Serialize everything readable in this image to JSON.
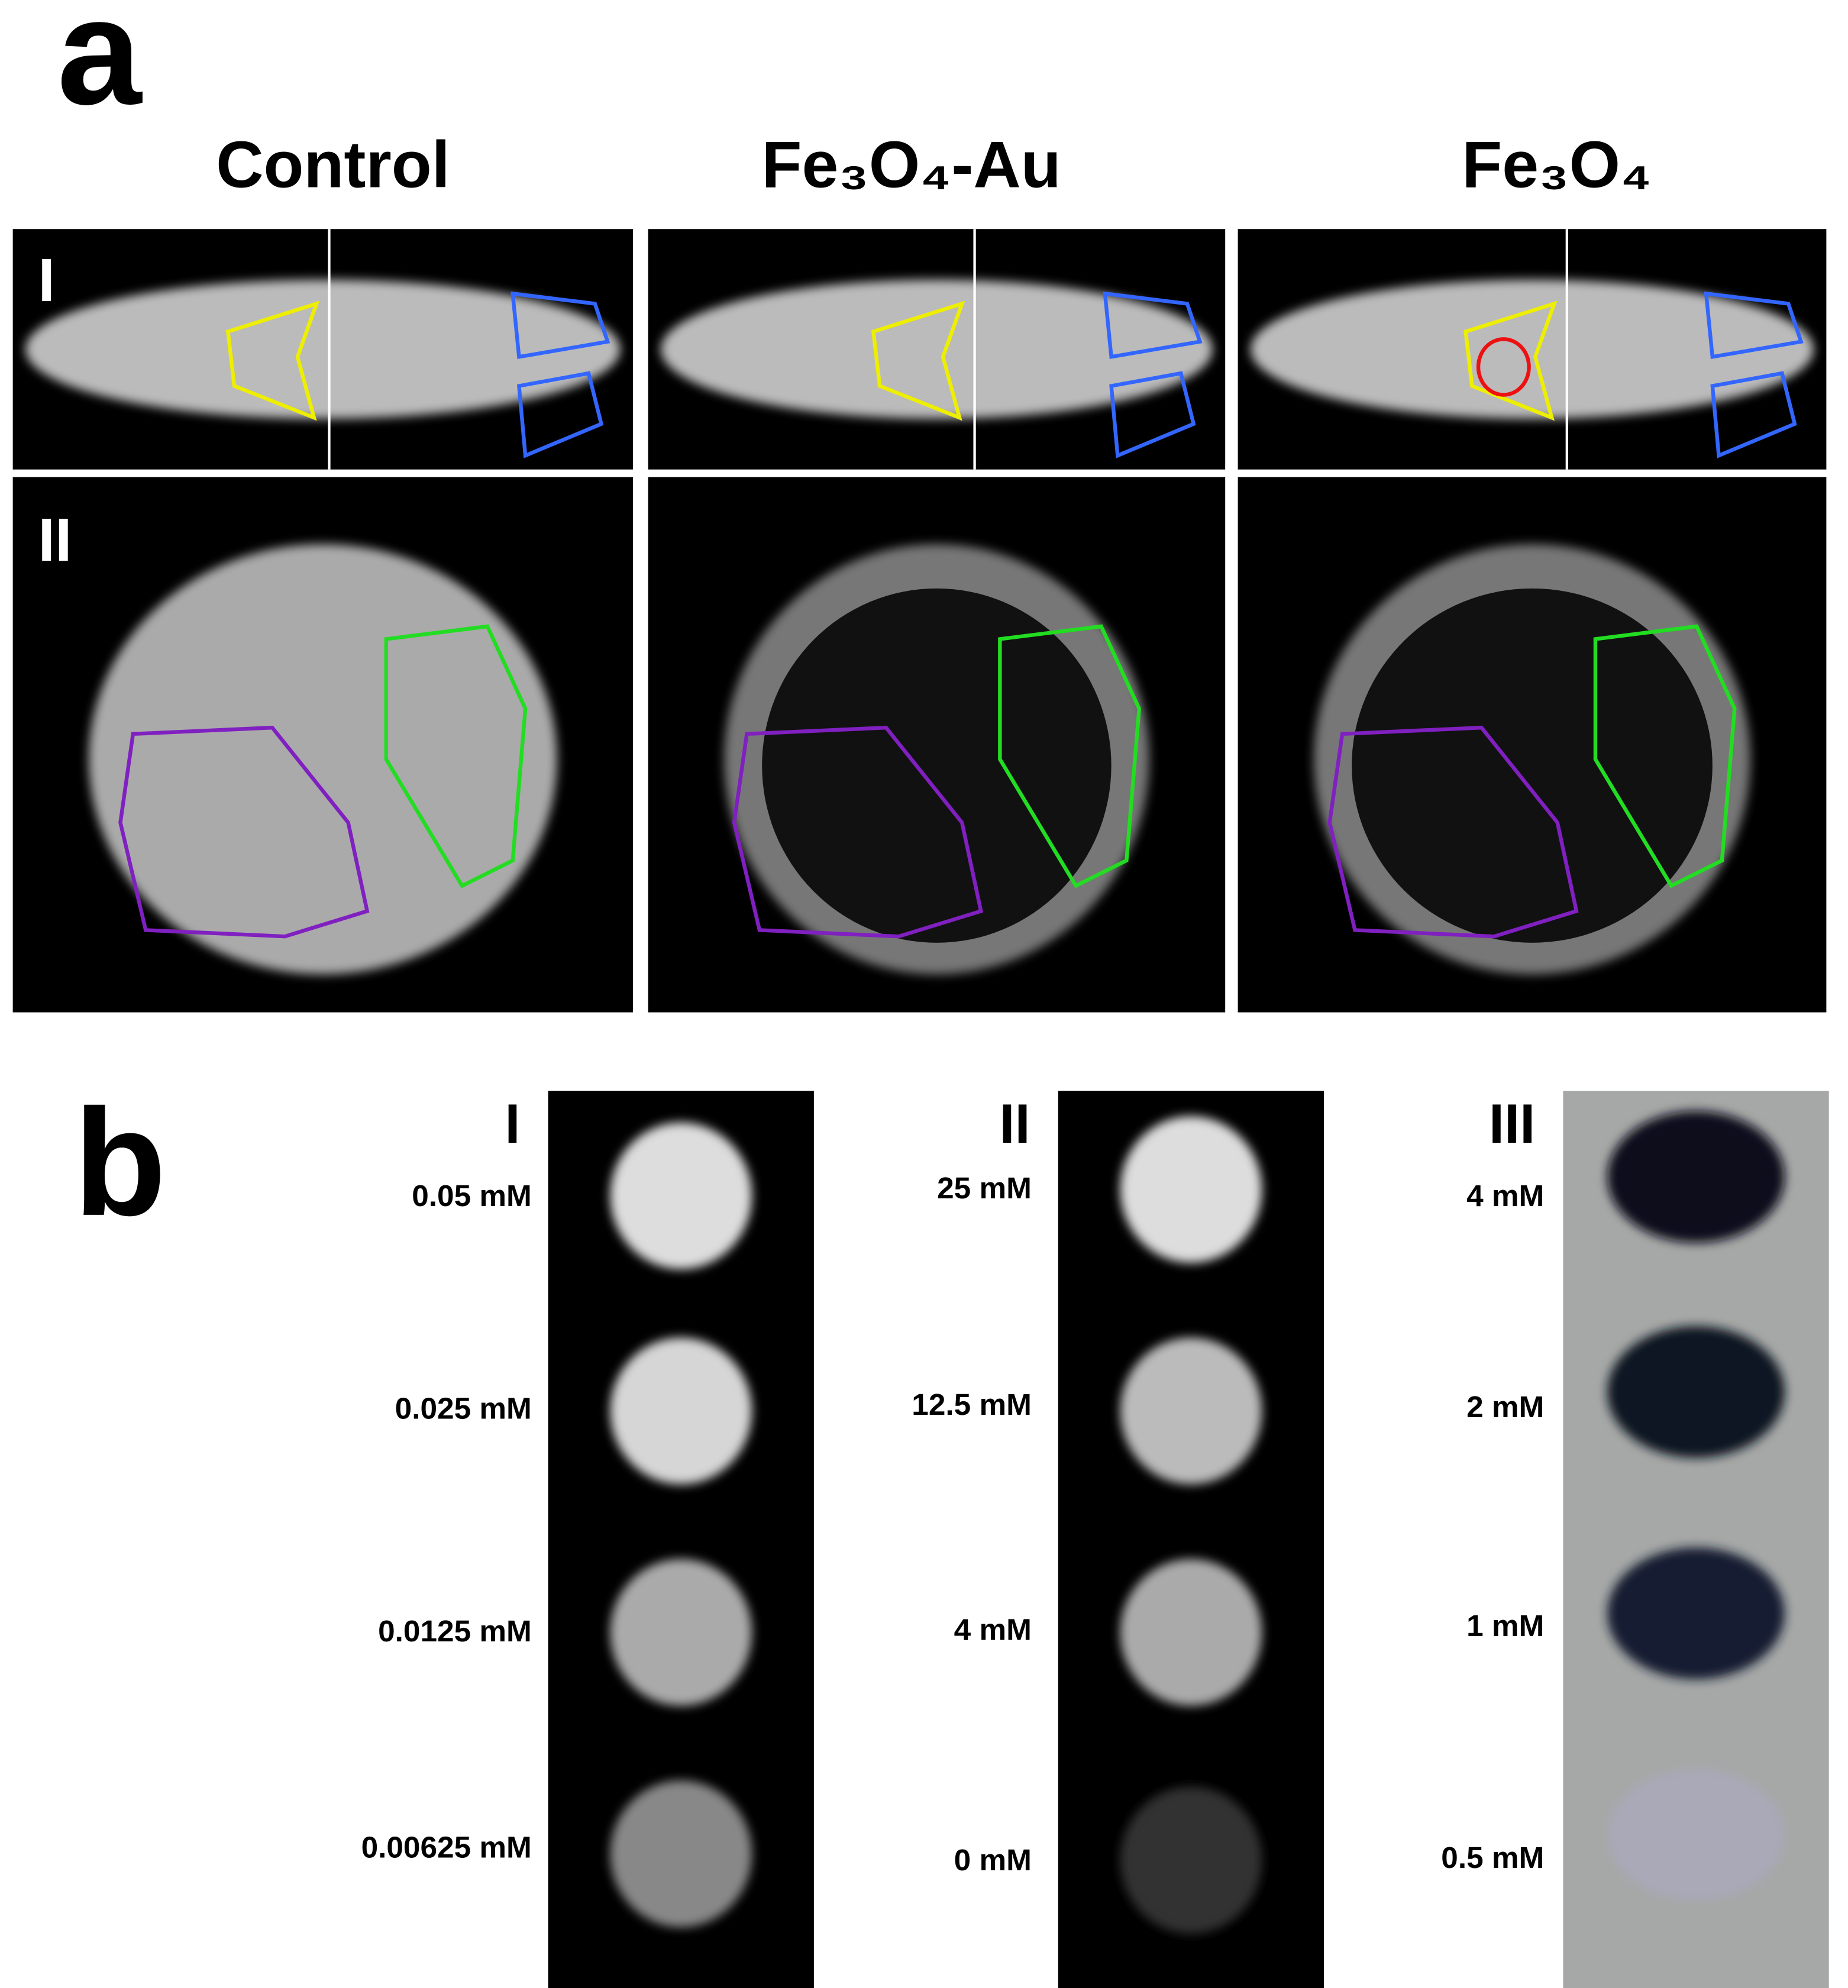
{
  "panel_a": {
    "label": "a",
    "columns": [
      "Control",
      "Fe₃O₄-Au",
      "Fe₃O₄"
    ],
    "rows": [
      "I",
      "II"
    ]
  },
  "panel_b": {
    "label": "b",
    "groups": [
      {
        "label": "I",
        "concentrations": [
          "0.05 mM",
          "0.025 mM",
          "0.0125 mM",
          "0.00625 mM"
        ]
      },
      {
        "label": "II",
        "concentrations": [
          "25 mM",
          "12.5 mM",
          "4 mM",
          "0 mM"
        ]
      },
      {
        "label": "III",
        "concentrations": [
          "4 mM",
          "2 mM",
          "1 mM",
          "0.5 mM"
        ]
      }
    ]
  }
}
